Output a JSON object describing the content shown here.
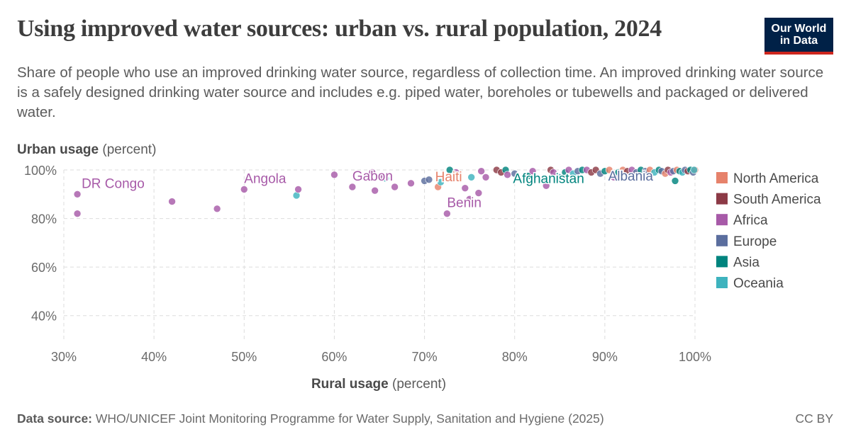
{
  "header": {
    "title": "Using improved water sources: urban vs. rural population, 2024",
    "subtitle": "Share of people who use an improved drinking water source, regardless of collection time. An improved drinking water source is a safely designed drinking water source and includes e.g. piped water, boreholes or tubewells and packaged or delivered water.",
    "logo_line1": "Our World",
    "logo_line2": "in Data"
  },
  "footer": {
    "source_label": "Data source:",
    "source_text": "WHO/UNICEF Joint Monitoring Programme for Water Supply, Sanitation and Hygiene (2025)",
    "license": "CC BY"
  },
  "colors": {
    "North America": "#e6826b",
    "South America": "#8c3a46",
    "Africa": "#a75aa8",
    "Europe": "#5b6e9e",
    "Asia": "#00847e",
    "Oceania": "#3eb3be"
  },
  "chart_data": {
    "type": "scatter",
    "title": "Using improved water sources: urban vs. rural population, 2024",
    "xlabel_bold": "Rural usage",
    "xlabel_unit": "(percent)",
    "ylabel_bold": "Urban usage",
    "ylabel_unit": "(percent)",
    "xlim": [
      30,
      100
    ],
    "ylim": [
      30,
      100
    ],
    "x_ticks": [
      30,
      40,
      50,
      60,
      70,
      80,
      90,
      100
    ],
    "x_tick_labels": [
      "30%",
      "40%",
      "50%",
      "60%",
      "70%",
      "80%",
      "90%",
      "100%"
    ],
    "y_ticks": [
      40,
      60,
      80,
      100
    ],
    "y_tick_labels": [
      "40%",
      "60%",
      "80%",
      "100%"
    ],
    "grid": true,
    "legend_position": "right",
    "legend": [
      "North America",
      "South America",
      "Africa",
      "Europe",
      "Asia",
      "Oceania"
    ],
    "labels": [
      {
        "text": "DR Congo",
        "x": 31.5,
        "y": 90,
        "region": "Africa"
      },
      {
        "text": "Angola",
        "x": 50,
        "y": 92,
        "region": "Africa"
      },
      {
        "text": "Gabon",
        "x": 62,
        "y": 93,
        "region": "Africa"
      },
      {
        "text": "Haiti",
        "x": 71.5,
        "y": 93,
        "region": "North America"
      },
      {
        "text": "Benin",
        "x": 72.5,
        "y": 82,
        "region": "Africa"
      },
      {
        "text": "Afghanistan",
        "x": 81,
        "y": 94,
        "region": "Asia"
      },
      {
        "text": "Albania",
        "x": 91,
        "y": 95,
        "region": "Europe"
      }
    ],
    "points": [
      {
        "x": 31.5,
        "y": 90,
        "region": "Africa"
      },
      {
        "x": 31.5,
        "y": 82,
        "region": "Africa"
      },
      {
        "x": 42,
        "y": 87,
        "region": "Africa"
      },
      {
        "x": 47,
        "y": 84,
        "region": "Africa"
      },
      {
        "x": 50,
        "y": 92,
        "region": "Africa"
      },
      {
        "x": 55.8,
        "y": 89.5,
        "region": "Oceania"
      },
      {
        "x": 56,
        "y": 92,
        "region": "Africa"
      },
      {
        "x": 60,
        "y": 98,
        "region": "Africa"
      },
      {
        "x": 62,
        "y": 93,
        "region": "Africa"
      },
      {
        "x": 64.2,
        "y": 99,
        "region": "Africa"
      },
      {
        "x": 64.5,
        "y": 91.5,
        "region": "Africa"
      },
      {
        "x": 65.2,
        "y": 97.5,
        "region": "Africa"
      },
      {
        "x": 65.7,
        "y": 96.5,
        "region": "Oceania"
      },
      {
        "x": 66.7,
        "y": 93,
        "region": "Africa"
      },
      {
        "x": 68.5,
        "y": 94.5,
        "region": "Africa"
      },
      {
        "x": 70,
        "y": 95.5,
        "region": "Europe"
      },
      {
        "x": 70.5,
        "y": 96,
        "region": "Europe"
      },
      {
        "x": 71.5,
        "y": 93,
        "region": "North America"
      },
      {
        "x": 71.8,
        "y": 95,
        "region": "Oceania"
      },
      {
        "x": 72.5,
        "y": 82,
        "region": "Africa"
      },
      {
        "x": 72.8,
        "y": 100,
        "region": "Asia"
      },
      {
        "x": 73.5,
        "y": 99,
        "region": "Africa"
      },
      {
        "x": 74.5,
        "y": 92.5,
        "region": "Africa"
      },
      {
        "x": 75,
        "y": 88,
        "region": "Africa"
      },
      {
        "x": 75.2,
        "y": 97,
        "region": "Oceania"
      },
      {
        "x": 76,
        "y": 90.5,
        "region": "Africa"
      },
      {
        "x": 76.3,
        "y": 99.5,
        "region": "Africa"
      },
      {
        "x": 76.8,
        "y": 97,
        "region": "Africa"
      },
      {
        "x": 78,
        "y": 100,
        "region": "South America"
      },
      {
        "x": 78.5,
        "y": 99,
        "region": "South America"
      },
      {
        "x": 79,
        "y": 100,
        "region": "Asia"
      },
      {
        "x": 79.2,
        "y": 98,
        "region": "Africa"
      },
      {
        "x": 80,
        "y": 98.5,
        "region": "Europe"
      },
      {
        "x": 81.5,
        "y": 97.5,
        "region": "Asia"
      },
      {
        "x": 82,
        "y": 99.5,
        "region": "Africa"
      },
      {
        "x": 83,
        "y": 96,
        "region": "Asia"
      },
      {
        "x": 83.5,
        "y": 93.5,
        "region": "Africa"
      },
      {
        "x": 84,
        "y": 100,
        "region": "South America"
      },
      {
        "x": 84.3,
        "y": 99,
        "region": "Africa"
      },
      {
        "x": 85,
        "y": 97,
        "region": "Oceania"
      },
      {
        "x": 85.6,
        "y": 99,
        "region": "Asia"
      },
      {
        "x": 86,
        "y": 100,
        "region": "Africa"
      },
      {
        "x": 86.5,
        "y": 98.5,
        "region": "Oceania"
      },
      {
        "x": 87,
        "y": 99.5,
        "region": "Europe"
      },
      {
        "x": 87.5,
        "y": 100,
        "region": "Asia"
      },
      {
        "x": 88,
        "y": 100,
        "region": "Africa"
      },
      {
        "x": 88.5,
        "y": 99,
        "region": "South America"
      },
      {
        "x": 89,
        "y": 100,
        "region": "South America"
      },
      {
        "x": 89.5,
        "y": 98.5,
        "region": "Europe"
      },
      {
        "x": 90,
        "y": 99.5,
        "region": "Asia"
      },
      {
        "x": 90.5,
        "y": 100,
        "region": "North America"
      },
      {
        "x": 91,
        "y": 97,
        "region": "Africa"
      },
      {
        "x": 91.5,
        "y": 99,
        "region": "Asia"
      },
      {
        "x": 92,
        "y": 100,
        "region": "North America"
      },
      {
        "x": 92.5,
        "y": 99.5,
        "region": "South America"
      },
      {
        "x": 93,
        "y": 100,
        "region": "Africa"
      },
      {
        "x": 93.5,
        "y": 99,
        "region": "Europe"
      },
      {
        "x": 94,
        "y": 100,
        "region": "Asia"
      },
      {
        "x": 94.5,
        "y": 99.5,
        "region": "Europe"
      },
      {
        "x": 95,
        "y": 100,
        "region": "North America"
      },
      {
        "x": 95.5,
        "y": 99,
        "region": "Oceania"
      },
      {
        "x": 96,
        "y": 100,
        "region": "Asia"
      },
      {
        "x": 96.3,
        "y": 99.5,
        "region": "Europe"
      },
      {
        "x": 96.7,
        "y": 98.5,
        "region": "North America"
      },
      {
        "x": 97,
        "y": 100,
        "region": "South America"
      },
      {
        "x": 97.3,
        "y": 99,
        "region": "Africa"
      },
      {
        "x": 97.6,
        "y": 99.5,
        "region": "Europe"
      },
      {
        "x": 97.8,
        "y": 95.5,
        "region": "Asia"
      },
      {
        "x": 98,
        "y": 100,
        "region": "North America"
      },
      {
        "x": 98.3,
        "y": 99.5,
        "region": "Asia"
      },
      {
        "x": 98.6,
        "y": 99,
        "region": "Oceania"
      },
      {
        "x": 98.9,
        "y": 100,
        "region": "Europe"
      },
      {
        "x": 99.2,
        "y": 99.5,
        "region": "South America"
      },
      {
        "x": 99.5,
        "y": 100,
        "region": "Asia"
      },
      {
        "x": 99.8,
        "y": 99,
        "region": "Europe"
      },
      {
        "x": 100,
        "y": 100,
        "region": "North America"
      },
      {
        "x": 99.9,
        "y": 100,
        "region": "Oceania"
      }
    ]
  }
}
